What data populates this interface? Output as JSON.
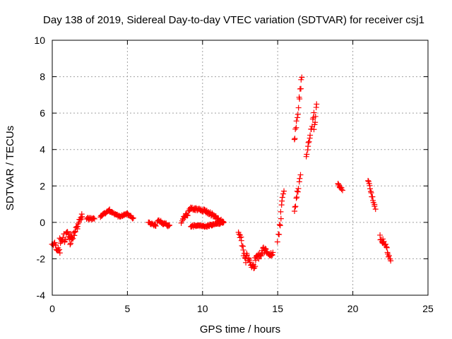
{
  "chart_data": {
    "type": "scatter",
    "title": "Day 138 of 2019, Sidereal Day-to-day VTEC variation (SDTVAR) for receiver csj1",
    "xlabel": "GPS time / hours",
    "ylabel": "SDTVAR / TECUs",
    "xlim": [
      0,
      25
    ],
    "ylim": [
      -4,
      10
    ],
    "xticks": [
      "0",
      "5",
      "10",
      "15",
      "20",
      "25"
    ],
    "yticks": [
      "-4",
      "-2",
      "0",
      "2",
      "4",
      "6",
      "8",
      "10"
    ],
    "grid": true,
    "marker": "plus",
    "color": "#ff0000",
    "series": [
      {
        "name": "csj1",
        "segments": [
          {
            "t0": 0.0,
            "t1": 0.5,
            "v0": -1.1,
            "v1": -1.6,
            "spread": 0.3
          },
          {
            "t0": 0.5,
            "t1": 1.3,
            "v0": -1.0,
            "v1": -0.6,
            "spread": 0.5
          },
          {
            "t0": 1.2,
            "t1": 2.0,
            "v0": -1.1,
            "v1": 0.4,
            "spread": 0.3
          },
          {
            "t0": 2.3,
            "t1": 2.8,
            "v0": 0.2,
            "v1": 0.2,
            "spread": 0.1
          },
          {
            "t0": 3.2,
            "t1": 3.8,
            "v0": 0.3,
            "v1": 0.7,
            "spread": 0.1
          },
          {
            "t0": 3.8,
            "t1": 4.5,
            "v0": 0.6,
            "v1": 0.3,
            "spread": 0.1
          },
          {
            "t0": 4.5,
            "t1": 5.0,
            "v0": 0.3,
            "v1": 0.5,
            "spread": 0.1
          },
          {
            "t0": 5.0,
            "t1": 5.4,
            "v0": 0.5,
            "v1": 0.2,
            "spread": 0.1
          },
          {
            "t0": 6.4,
            "t1": 6.9,
            "v0": 0.0,
            "v1": -0.2,
            "spread": 0.1
          },
          {
            "t0": 7.0,
            "t1": 7.8,
            "v0": 0.1,
            "v1": -0.2,
            "spread": 0.15
          },
          {
            "t0": 8.6,
            "t1": 9.2,
            "v0": 0.1,
            "v1": 0.7,
            "spread": 0.3
          },
          {
            "t0": 9.2,
            "t1": 10.3,
            "v0": 0.8,
            "v1": 0.6,
            "spread": 0.15
          },
          {
            "t0": 9.2,
            "t1": 10.3,
            "v0": -0.2,
            "v1": -0.2,
            "spread": 0.1
          },
          {
            "t0": 10.3,
            "t1": 11.4,
            "v0": 0.6,
            "v1": 0.0,
            "spread": 0.2
          },
          {
            "t0": 10.3,
            "t1": 11.4,
            "v0": -0.2,
            "v1": 0.0,
            "spread": 0.1
          },
          {
            "t0": 12.4,
            "t1": 12.9,
            "v0": -0.4,
            "v1": -2.2,
            "spread": 0.4
          },
          {
            "t0": 12.9,
            "t1": 13.5,
            "v0": -1.7,
            "v1": -2.6,
            "spread": 0.5
          },
          {
            "t0": 13.5,
            "t1": 14.1,
            "v0": -2.0,
            "v1": -1.5,
            "spread": 0.4
          },
          {
            "t0": 14.1,
            "t1": 14.7,
            "v0": -1.5,
            "v1": -1.8,
            "spread": 0.3
          },
          {
            "t0": 15.0,
            "t1": 15.2,
            "v0": -1.0,
            "v1": 0.2,
            "spread": 0.4
          },
          {
            "t0": 15.2,
            "t1": 15.4,
            "v0": 0.6,
            "v1": 1.7,
            "spread": 0.3
          },
          {
            "t0": 16.1,
            "t1": 16.5,
            "v0": 0.6,
            "v1": 2.6,
            "spread": 0.3
          },
          {
            "t0": 16.1,
            "t1": 16.6,
            "v0": 4.4,
            "v1": 8.1,
            "spread": 0.4
          },
          {
            "t0": 16.9,
            "t1": 17.4,
            "v0": 3.7,
            "v1": 5.9,
            "spread": 0.3
          },
          {
            "t0": 17.4,
            "t1": 17.6,
            "v0": 5.0,
            "v1": 6.6,
            "spread": 0.3
          },
          {
            "t0": 19.0,
            "t1": 19.3,
            "v0": 2.1,
            "v1": 1.8,
            "spread": 0.1
          },
          {
            "t0": 21.0,
            "t1": 21.5,
            "v0": 2.3,
            "v1": 0.8,
            "spread": 0.2
          },
          {
            "t0": 21.8,
            "t1": 22.0,
            "v0": -0.8,
            "v1": -1.1,
            "spread": 0.2
          },
          {
            "t0": 22.0,
            "t1": 22.5,
            "v0": -0.9,
            "v1": -2.0,
            "spread": 0.3
          }
        ]
      }
    ]
  }
}
